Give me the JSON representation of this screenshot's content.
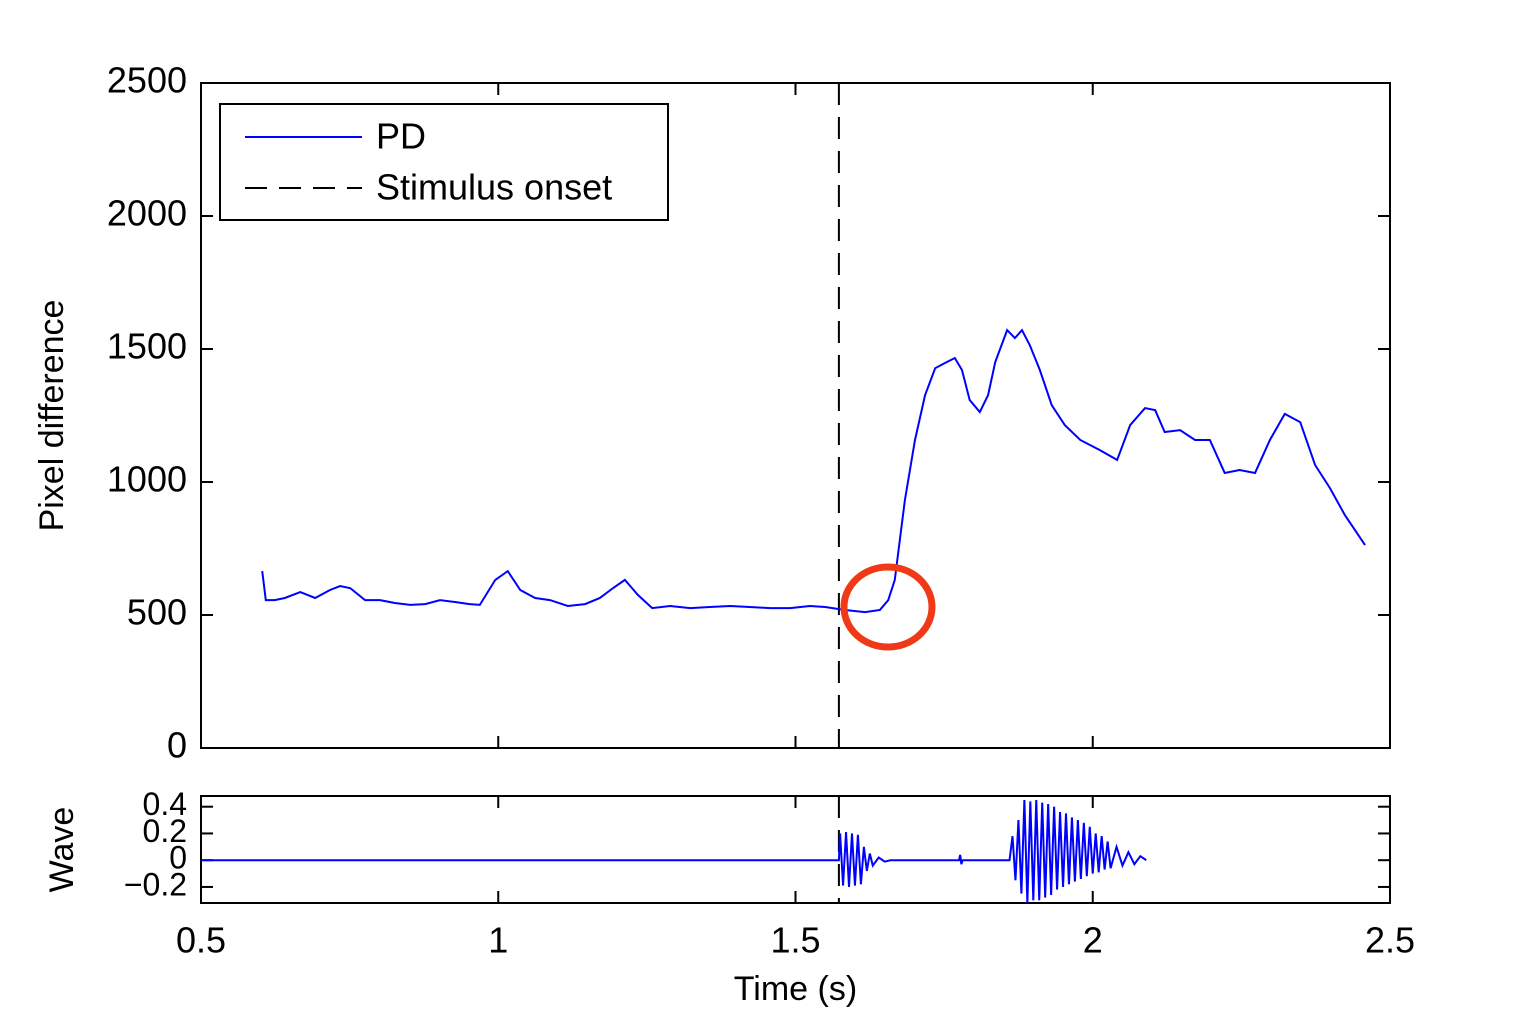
{
  "chart_data": [
    {
      "type": "line",
      "ylabel": "Pixel difference",
      "xlim": [
        0.5,
        2.5
      ],
      "xticks": [
        0.5,
        1,
        1.5,
        2,
        2.5
      ],
      "show_xtick_labels": false,
      "ylim": [
        0,
        2500
      ],
      "yticks": [
        0,
        500,
        1000,
        1500,
        2000,
        2500
      ],
      "legend": "upper left",
      "vline": {
        "name": "Stimulus onset",
        "x": 1.573,
        "color": "#000000"
      },
      "series": [
        {
          "name": "PD",
          "color": "#0000ff",
          "x": [
            0.603,
            0.609,
            0.624,
            0.641,
            0.667,
            0.692,
            0.717,
            0.734,
            0.751,
            0.776,
            0.801,
            0.826,
            0.852,
            0.877,
            0.902,
            0.927,
            0.952,
            0.969,
            0.995,
            1.016,
            1.037,
            1.062,
            1.087,
            1.117,
            1.146,
            1.171,
            1.193,
            1.213,
            1.235,
            1.259,
            1.289,
            1.323,
            1.356,
            1.39,
            1.423,
            1.457,
            1.491,
            1.524,
            1.55,
            1.583,
            1.617,
            1.642,
            1.656,
            1.667,
            1.684,
            1.701,
            1.718,
            1.735,
            1.751,
            1.768,
            1.78,
            1.793,
            1.81,
            1.824,
            1.836,
            1.856,
            1.869,
            1.881,
            1.894,
            1.911,
            1.931,
            1.953,
            1.979,
            2.012,
            2.041,
            2.063,
            2.088,
            2.105,
            2.121,
            2.147,
            2.172,
            2.197,
            2.222,
            2.247,
            2.273,
            2.298,
            2.323,
            2.349,
            2.374,
            2.399,
            2.424,
            2.458
          ],
          "values": [
            665,
            556,
            556,
            564,
            586,
            564,
            594,
            609,
            601,
            556,
            556,
            545,
            538,
            541,
            556,
            549,
            541,
            538,
            632,
            665,
            594,
            564,
            556,
            534,
            541,
            564,
            601,
            632,
            575,
            526,
            534,
            526,
            530,
            534,
            530,
            526,
            526,
            534,
            530,
            519,
            511,
            519,
            556,
            632,
            932,
            1158,
            1327,
            1428,
            1447,
            1466,
            1421,
            1308,
            1263,
            1327,
            1451,
            1571,
            1541,
            1571,
            1515,
            1421,
            1289,
            1214,
            1158,
            1120,
            1083,
            1214,
            1278,
            1270,
            1188,
            1195,
            1158,
            1158,
            1034,
            1045,
            1034,
            1158,
            1256,
            1225,
            1064,
            977,
            876,
            763
          ]
        }
      ]
    },
    {
      "type": "line",
      "ylabel": "Wave",
      "xlabel": "Time (s)",
      "xlim": [
        0.5,
        2.5
      ],
      "xticks": [
        0.5,
        1,
        1.5,
        2,
        2.5
      ],
      "show_xtick_labels": true,
      "ylim": [
        -0.32,
        0.48
      ],
      "yticks": [
        {
          "value": -0.2,
          "label": "−0.2"
        },
        0,
        0.2,
        0.4
      ],
      "series": [
        {
          "name": "Wave",
          "color": "#0000ff",
          "x": [
            0.5,
            1.573,
            1.575,
            1.58,
            1.585,
            1.59,
            1.595,
            1.6,
            1.605,
            1.61,
            1.615,
            1.62,
            1.625,
            1.63,
            1.64,
            1.65,
            1.66,
            1.775,
            1.777,
            1.779,
            1.781,
            1.86,
            1.865,
            1.87,
            1.875,
            1.88,
            1.885,
            1.89,
            1.895,
            1.9,
            1.905,
            1.91,
            1.915,
            1.92,
            1.925,
            1.93,
            1.935,
            1.94,
            1.945,
            1.95,
            1.955,
            1.96,
            1.965,
            1.97,
            1.975,
            1.98,
            1.985,
            1.99,
            1.995,
            2.0,
            2.005,
            2.01,
            2.015,
            2.02,
            2.025,
            2.03,
            2.04,
            2.05,
            2.06,
            2.07,
            2.08,
            2.09
          ],
          "values": [
            0,
            0,
            0.2,
            -0.19,
            0.21,
            -0.2,
            0.2,
            -0.19,
            0.19,
            -0.18,
            0.1,
            -0.08,
            0.05,
            -0.04,
            0.02,
            -0.01,
            0,
            0,
            0.04,
            -0.03,
            0,
            0,
            0.18,
            -0.15,
            0.3,
            -0.25,
            0.45,
            -0.32,
            0.44,
            -0.3,
            0.45,
            -0.3,
            0.43,
            -0.28,
            0.42,
            -0.26,
            0.4,
            -0.22,
            0.36,
            -0.2,
            0.35,
            -0.18,
            0.32,
            -0.16,
            0.3,
            -0.14,
            0.28,
            -0.12,
            0.25,
            -0.1,
            0.2,
            -0.09,
            0.18,
            -0.07,
            0.14,
            -0.06,
            0.1,
            -0.04,
            0.06,
            -0.03,
            0.03,
            0
          ]
        }
      ]
    }
  ]
}
